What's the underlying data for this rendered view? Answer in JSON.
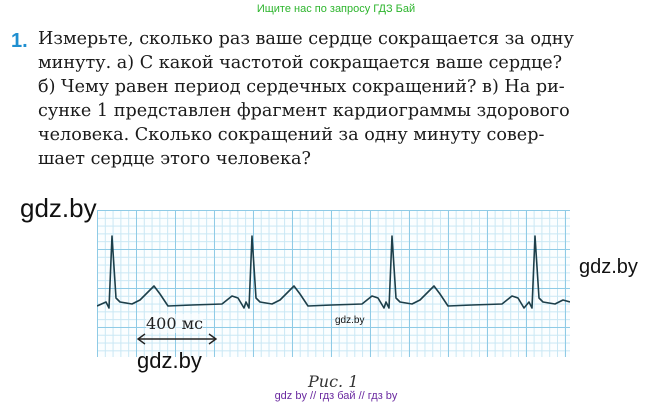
{
  "banner": "Ищите нас по запросу ГДЗ Бай",
  "task": {
    "number": "1.",
    "lines": [
      "Измерьте, сколько раз ваше сердце сокращается за одну",
      "минуту. а) С какой частотой сокращается ваше сердце?",
      "б) Чему равен период сердечных сокращений? в) На ри-",
      "сунке 1 представлен фрагмент кардиограммы здорового",
      "человека. Сколько сокращений за одну минуту совер-",
      "шает сердце этого человека?"
    ]
  },
  "figure": {
    "scale_label": "400 мс",
    "caption": "Рис. 1",
    "trace_color": "#1d3f4a",
    "grid_color": "#8fcbe6"
  },
  "watermarks": {
    "left": "gdz.by",
    "right": "gdz.by",
    "center": "gdz.by",
    "under_arrow": "gdz.by",
    "bottom": "gdz by  //  гдз бай  //  гдз by"
  }
}
